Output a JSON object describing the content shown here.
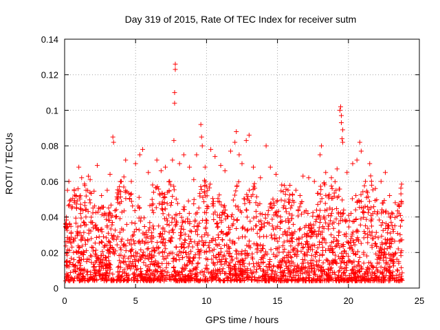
{
  "chart_data": {
    "type": "scatter",
    "title": "Day 319 of 2015, Rate Of TEC Index for receiver sutm",
    "xlabel": "GPS time / hours",
    "ylabel": "ROTI / TECUs",
    "xlim": [
      0,
      25
    ],
    "ylim": [
      0,
      0.14
    ],
    "xticks": [
      0,
      5,
      10,
      15,
      20,
      25
    ],
    "xtick_labels": [
      "0",
      "5",
      "10",
      "15",
      "20",
      "25"
    ],
    "yticks": [
      0,
      0.02,
      0.04,
      0.06,
      0.08,
      0.1,
      0.12,
      0.14
    ],
    "ytick_labels": [
      "0",
      "0.02",
      "0.04",
      "0.06",
      "0.08",
      "0.1",
      "0.12",
      "0.14"
    ],
    "grid": true,
    "marker": "+",
    "color": "#ff0000",
    "series": [
      {
        "points": [
          [
            0.1,
            0.026
          ],
          [
            0.2,
            0.055
          ],
          [
            0.3,
            0.06
          ],
          [
            0.5,
            0.045
          ],
          [
            0.8,
            0.052
          ],
          [
            1.0,
            0.068
          ],
          [
            1.2,
            0.062
          ],
          [
            1.5,
            0.04
          ],
          [
            1.8,
            0.061
          ],
          [
            2.0,
            0.045
          ],
          [
            2.3,
            0.069
          ],
          [
            2.6,
            0.052
          ],
          [
            3.0,
            0.055
          ],
          [
            3.2,
            0.064
          ],
          [
            3.4,
            0.085
          ],
          [
            3.45,
            0.082
          ],
          [
            3.7,
            0.05
          ],
          [
            4.0,
            0.06
          ],
          [
            4.3,
            0.072
          ],
          [
            4.7,
            0.06
          ],
          [
            5.0,
            0.07
          ],
          [
            5.3,
            0.075
          ],
          [
            5.5,
            0.078
          ],
          [
            5.9,
            0.065
          ],
          [
            6.2,
            0.058
          ],
          [
            6.5,
            0.072
          ],
          [
            6.8,
            0.066
          ],
          [
            7.1,
            0.068
          ],
          [
            7.4,
            0.06
          ],
          [
            7.6,
            0.072
          ],
          [
            7.7,
            0.083
          ],
          [
            7.75,
            0.104
          ],
          [
            7.75,
            0.11
          ],
          [
            7.8,
            0.123
          ],
          [
            7.8,
            0.126
          ],
          [
            8.1,
            0.07
          ],
          [
            8.4,
            0.075
          ],
          [
            8.8,
            0.068
          ],
          [
            9.1,
            0.061
          ],
          [
            9.3,
            0.075
          ],
          [
            9.6,
            0.092
          ],
          [
            9.65,
            0.085
          ],
          [
            9.7,
            0.08
          ],
          [
            9.9,
            0.068
          ],
          [
            10.3,
            0.078
          ],
          [
            10.6,
            0.074
          ],
          [
            11.0,
            0.069
          ],
          [
            11.3,
            0.066
          ],
          [
            11.7,
            0.077
          ],
          [
            12.0,
            0.082
          ],
          [
            12.1,
            0.088
          ],
          [
            12.3,
            0.075
          ],
          [
            12.5,
            0.07
          ],
          [
            12.8,
            0.083
          ],
          [
            13.0,
            0.086
          ],
          [
            13.3,
            0.068
          ],
          [
            13.8,
            0.062
          ],
          [
            14.2,
            0.08
          ],
          [
            14.5,
            0.068
          ],
          [
            14.9,
            0.064
          ],
          [
            15.3,
            0.058
          ],
          [
            15.8,
            0.05
          ],
          [
            16.3,
            0.055
          ],
          [
            16.8,
            0.063
          ],
          [
            17.2,
            0.062
          ],
          [
            17.6,
            0.06
          ],
          [
            18.0,
            0.075
          ],
          [
            18.1,
            0.08
          ],
          [
            18.4,
            0.065
          ],
          [
            18.8,
            0.062
          ],
          [
            19.2,
            0.067
          ],
          [
            19.4,
            0.1
          ],
          [
            19.45,
            0.102
          ],
          [
            19.5,
            0.097
          ],
          [
            19.5,
            0.093
          ],
          [
            19.6,
            0.089
          ],
          [
            19.55,
            0.084
          ],
          [
            19.6,
            0.082
          ],
          [
            19.9,
            0.065
          ],
          [
            20.3,
            0.07
          ],
          [
            20.6,
            0.072
          ],
          [
            20.8,
            0.082
          ],
          [
            20.9,
            0.077
          ],
          [
            21.2,
            0.06
          ],
          [
            21.5,
            0.07
          ],
          [
            21.9,
            0.056
          ],
          [
            22.3,
            0.06
          ],
          [
            22.6,
            0.065
          ],
          [
            22.9,
            0.052
          ],
          [
            23.3,
            0.048
          ],
          [
            23.7,
            0.053
          ],
          [
            0.3,
            0.012
          ],
          [
            1.1,
            0.008
          ],
          [
            2.5,
            0.01
          ],
          [
            4.1,
            0.009
          ],
          [
            6.3,
            0.007
          ],
          [
            8.5,
            0.011
          ],
          [
            10.5,
            0.01
          ],
          [
            12.7,
            0.009
          ],
          [
            14.6,
            0.008
          ],
          [
            16.5,
            0.01
          ],
          [
            18.5,
            0.007
          ],
          [
            20.5,
            0.009
          ],
          [
            22.4,
            0.008
          ],
          [
            23.5,
            0.006
          ]
        ]
      }
    ]
  }
}
